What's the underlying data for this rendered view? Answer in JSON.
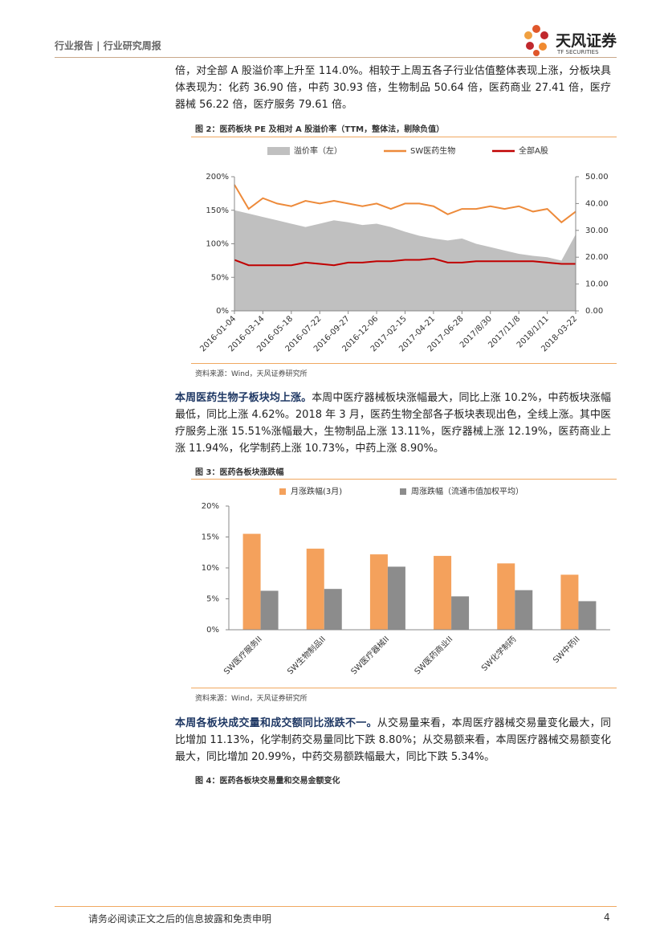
{
  "header": {
    "title": "行业报告 | 行业研究周报"
  },
  "logo": {
    "name": "天风证券",
    "sub": "TF SECURITIES"
  },
  "paragraphs": [
    {
      "text": "倍，对全部 A 股溢价率上升至 114.0%。相较于上周五各子行业估值整体表现上涨，分板块具体表现为：化药 36.90 倍，中药 30.93 倍，生物制品 50.64 倍，医药商业 27.41 倍，医疗器械 56.22 倍，医疗服务 79.61 倍。"
    },
    {
      "lead": "本周医药生物子板块均上涨。",
      "text": "本周中医疗器械板块涨幅最大，同比上涨 10.2%，中药板块涨幅最低，同比上涨 4.62%。2018 年 3 月，医药生物全部各子板块表现出色，全线上涨。其中医疗服务上涨 15.51%涨幅最大，生物制品上涨 13.11%，医疗器械上涨 12.19%，医药商业上涨 11.94%，化学制药上涨 10.73%，中药上涨 8.90%。"
    },
    {
      "lead": "本周各板块成交量和成交额同比涨跌不一。",
      "text": "从交易量来看，本周医疗器械交易量变化最大，同比增加 11.13%，化学制药交易量同比下跌 8.80%；从交易额来看，本周医疗器械交易额变化最大，同比增加 20.99%，中药交易额跌幅最大，同比下跌 5.34%。"
    }
  ],
  "figures": [
    {
      "caption": "图 2：医药板块 PE 及相对 A 股溢价率（TTM，整体法，剔除负值）",
      "source": "资料来源：Wind，天风证券研究所",
      "chart_data": {
        "type": "line",
        "x": [
          "2016-01-04",
          null,
          "2016-03-14",
          null,
          "2016-05-18",
          null,
          "2016-07-22",
          null,
          "2016-09-27",
          null,
          "2016-12-06",
          null,
          "2017-02-15",
          null,
          "2017-04-21",
          null,
          "2017-06-28",
          null,
          "2017/8/30",
          null,
          "2017/11/8",
          null,
          "2018/1/11",
          null,
          "2018-03-22"
        ],
        "series": [
          {
            "name": "溢价率（左）",
            "style": "area",
            "color": "#c0c0c0",
            "values": [
              150,
              145,
              140,
              135,
              130,
              125,
              130,
              135,
              132,
              128,
              130,
              125,
              118,
              112,
              108,
              105,
              108,
              100,
              95,
              90,
              85,
              82,
              80,
              75,
              114
            ]
          },
          {
            "name": "SW医药生物",
            "style": "line",
            "axis": "y2",
            "color": "#ed8a3a",
            "values": [
              47,
              38,
              42,
              40,
              39,
              41,
              40,
              41,
              40,
              39,
              40,
              38,
              40,
              40,
              39,
              36,
              38,
              38,
              39,
              38,
              39,
              37,
              38,
              33,
              37
            ]
          },
          {
            "name": "全部A股",
            "style": "line",
            "axis": "y2",
            "color": "#c00000",
            "values": [
              19,
              17,
              17,
              17,
              17,
              18,
              17.5,
              17,
              18,
              18,
              18.5,
              18.5,
              19,
              19,
              19.5,
              18,
              18,
              18.5,
              18.5,
              18.5,
              18.5,
              18.5,
              18,
              17.5,
              17.5
            ]
          }
        ],
        "ylim": [
          0,
          200
        ],
        "yticks": [
          {
            "value": 0,
            "label": "0%"
          },
          {
            "value": 50,
            "label": "50%"
          },
          {
            "value": 100,
            "label": "100%"
          },
          {
            "value": 150,
            "label": "150%"
          },
          {
            "value": 200,
            "label": "200%"
          }
        ],
        "y2lim": [
          0,
          50
        ],
        "y2ticks": [
          {
            "value": 0,
            "label": "0.00"
          },
          {
            "value": 10,
            "label": "10.00"
          },
          {
            "value": 20,
            "label": "20.00"
          },
          {
            "value": 30,
            "label": "30.00"
          },
          {
            "value": 40,
            "label": "40.00"
          },
          {
            "value": 50,
            "label": "50.00"
          }
        ]
      }
    },
    {
      "caption": "图 3：医药各板块涨跌幅",
      "source": "资料来源：Wind，天风证券研究所",
      "chart_data": {
        "type": "bar",
        "categories": [
          "SW医疗服务II",
          "SW生物制品II",
          "SW医疗器械II",
          "SW医药商业II",
          "SW化学制药",
          "SW中药II"
        ],
        "series": [
          {
            "name": "月涨跌幅(3月)",
            "color": "#f4a15c",
            "values": [
              15.51,
              13.11,
              12.19,
              11.94,
              10.73,
              8.9
            ]
          },
          {
            "name": "周涨跌幅（流通市值加权平均）",
            "color": "#8c8c8c",
            "values": [
              6.3,
              6.6,
              10.2,
              5.4,
              6.4,
              4.62
            ]
          }
        ],
        "ylim": [
          0,
          20
        ],
        "yticks": [
          {
            "value": 0,
            "label": "0%"
          },
          {
            "value": 5,
            "label": "5%"
          },
          {
            "value": 10,
            "label": "10%"
          },
          {
            "value": 15,
            "label": "15%"
          },
          {
            "value": 20,
            "label": "20%"
          }
        ]
      }
    },
    {
      "caption": "图 4：医药各板块交易量和交易金额变化"
    }
  ],
  "footer": {
    "disclaimer": "请务必阅读正文之后的信息披露和免责申明",
    "page": 4
  }
}
